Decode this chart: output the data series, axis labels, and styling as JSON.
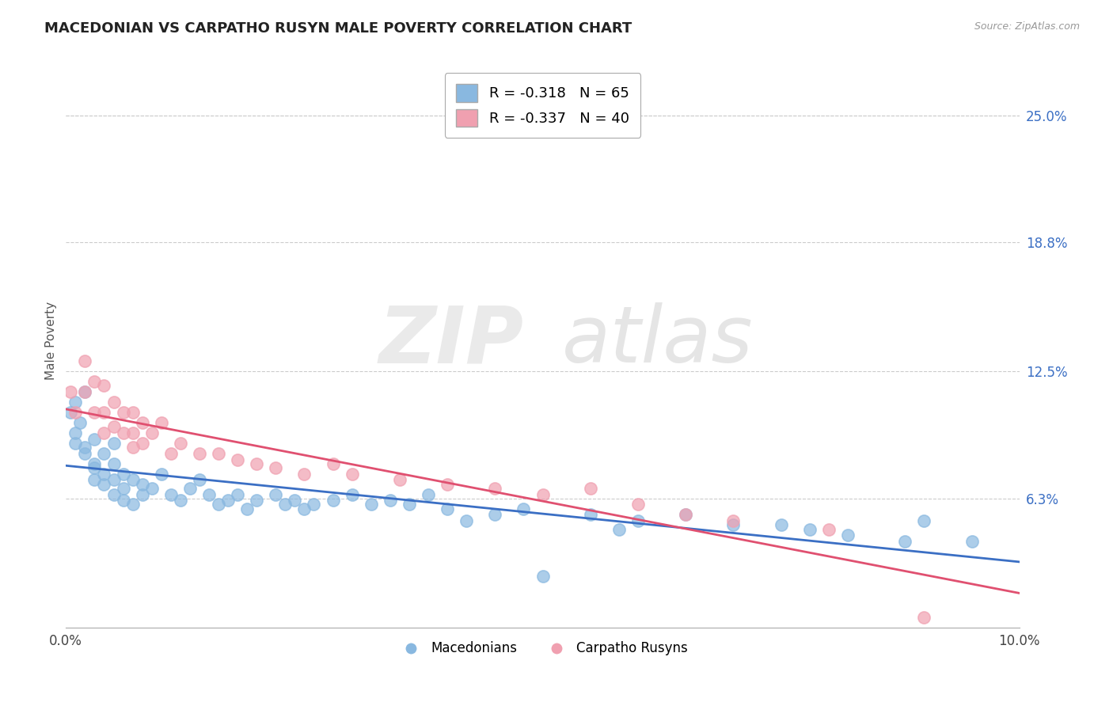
{
  "title": "MACEDONIAN VS CARPATHO RUSYN MALE POVERTY CORRELATION CHART",
  "source": "Source: ZipAtlas.com",
  "ylabel": "Male Poverty",
  "right_yticks": [
    "25.0%",
    "18.8%",
    "12.5%",
    "6.3%"
  ],
  "right_ytick_vals": [
    0.25,
    0.188,
    0.125,
    0.063
  ],
  "legend_r_mac": "R = -0.318",
  "legend_n_mac": "N = 65",
  "legend_r_carp": "R = -0.337",
  "legend_n_carp": "N = 40",
  "macedonian_color": "#89b8e0",
  "carpatho_color": "#f0a0b0",
  "macedonian_line_color": "#3b6fc4",
  "carpatho_line_color": "#e05070",
  "xlim": [
    0.0,
    0.1
  ],
  "ylim": [
    0.0,
    0.28
  ],
  "mac_x": [
    0.0005,
    0.001,
    0.001,
    0.001,
    0.0015,
    0.002,
    0.002,
    0.002,
    0.003,
    0.003,
    0.003,
    0.003,
    0.004,
    0.004,
    0.004,
    0.005,
    0.005,
    0.005,
    0.005,
    0.006,
    0.006,
    0.006,
    0.007,
    0.007,
    0.008,
    0.008,
    0.009,
    0.01,
    0.011,
    0.012,
    0.013,
    0.014,
    0.015,
    0.016,
    0.017,
    0.018,
    0.019,
    0.02,
    0.022,
    0.023,
    0.024,
    0.025,
    0.026,
    0.028,
    0.03,
    0.032,
    0.034,
    0.036,
    0.038,
    0.04,
    0.042,
    0.045,
    0.048,
    0.05,
    0.055,
    0.058,
    0.06,
    0.065,
    0.07,
    0.075,
    0.078,
    0.082,
    0.088,
    0.09,
    0.095
  ],
  "mac_y": [
    0.105,
    0.11,
    0.095,
    0.09,
    0.1,
    0.115,
    0.088,
    0.085,
    0.092,
    0.08,
    0.078,
    0.072,
    0.085,
    0.075,
    0.07,
    0.09,
    0.08,
    0.072,
    0.065,
    0.075,
    0.068,
    0.062,
    0.072,
    0.06,
    0.07,
    0.065,
    0.068,
    0.075,
    0.065,
    0.062,
    0.068,
    0.072,
    0.065,
    0.06,
    0.062,
    0.065,
    0.058,
    0.062,
    0.065,
    0.06,
    0.062,
    0.058,
    0.06,
    0.062,
    0.065,
    0.06,
    0.062,
    0.06,
    0.065,
    0.058,
    0.052,
    0.055,
    0.058,
    0.025,
    0.055,
    0.048,
    0.052,
    0.055,
    0.05,
    0.05,
    0.048,
    0.045,
    0.042,
    0.052,
    0.042
  ],
  "carp_x": [
    0.0005,
    0.001,
    0.002,
    0.002,
    0.003,
    0.003,
    0.004,
    0.004,
    0.004,
    0.005,
    0.005,
    0.006,
    0.006,
    0.007,
    0.007,
    0.007,
    0.008,
    0.008,
    0.009,
    0.01,
    0.011,
    0.012,
    0.014,
    0.016,
    0.018,
    0.02,
    0.022,
    0.025,
    0.028,
    0.03,
    0.035,
    0.04,
    0.045,
    0.05,
    0.055,
    0.06,
    0.065,
    0.07,
    0.08,
    0.09
  ],
  "carp_y": [
    0.115,
    0.105,
    0.13,
    0.115,
    0.12,
    0.105,
    0.118,
    0.105,
    0.095,
    0.11,
    0.098,
    0.105,
    0.095,
    0.105,
    0.095,
    0.088,
    0.1,
    0.09,
    0.095,
    0.1,
    0.085,
    0.09,
    0.085,
    0.085,
    0.082,
    0.08,
    0.078,
    0.075,
    0.08,
    0.075,
    0.072,
    0.07,
    0.068,
    0.065,
    0.068,
    0.06,
    0.055,
    0.052,
    0.048,
    0.005
  ]
}
